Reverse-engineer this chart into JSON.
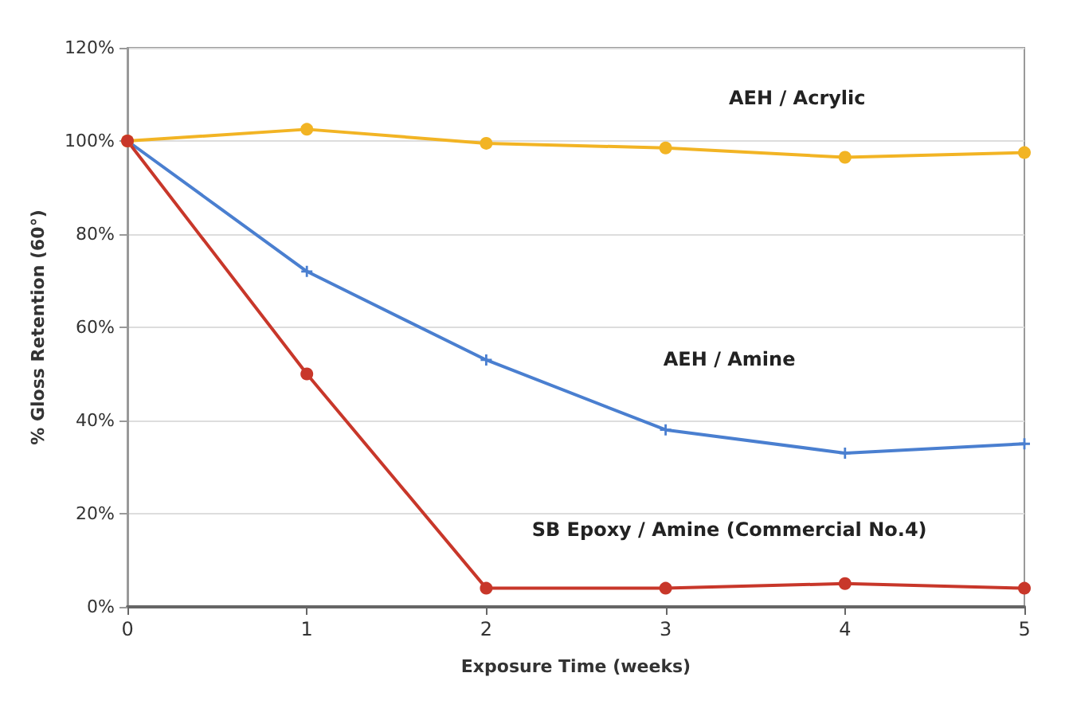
{
  "chart_data": {
    "type": "line",
    "xlabel": "Exposure Time (weeks)",
    "ylabel": "% Gloss Retention (60°)",
    "x": [
      0,
      1,
      2,
      3,
      4,
      5
    ],
    "xlim": [
      0,
      5
    ],
    "xticks": [
      0,
      1,
      2,
      3,
      4,
      5
    ],
    "ylim": [
      0,
      120
    ],
    "yticks": [
      {
        "value": 0,
        "label": "0%"
      },
      {
        "value": 20,
        "label": "20%"
      },
      {
        "value": 40,
        "label": "40%"
      },
      {
        "value": 60,
        "label": "60%"
      },
      {
        "value": 80,
        "label": "80%"
      },
      {
        "value": 100,
        "label": "100%"
      },
      {
        "value": 120,
        "label": "120%"
      }
    ],
    "grid": "y",
    "legend": false,
    "series": [
      {
        "name": "AEH / Acrylic",
        "color": "#f2b424",
        "marker": "circle",
        "values": [
          100,
          102.5,
          99.5,
          98.5,
          96.5,
          97.5
        ]
      },
      {
        "name": "AEH / Amine",
        "color": "#4a7fd0",
        "marker": "cross",
        "values": [
          100,
          72,
          53,
          38,
          33,
          35
        ]
      },
      {
        "name": "SB Epoxy / Amine (Commercial No.4)",
        "color": "#c8372a",
        "marker": "circle",
        "values": [
          100,
          50,
          4,
          4,
          5,
          4
        ]
      }
    ]
  }
}
